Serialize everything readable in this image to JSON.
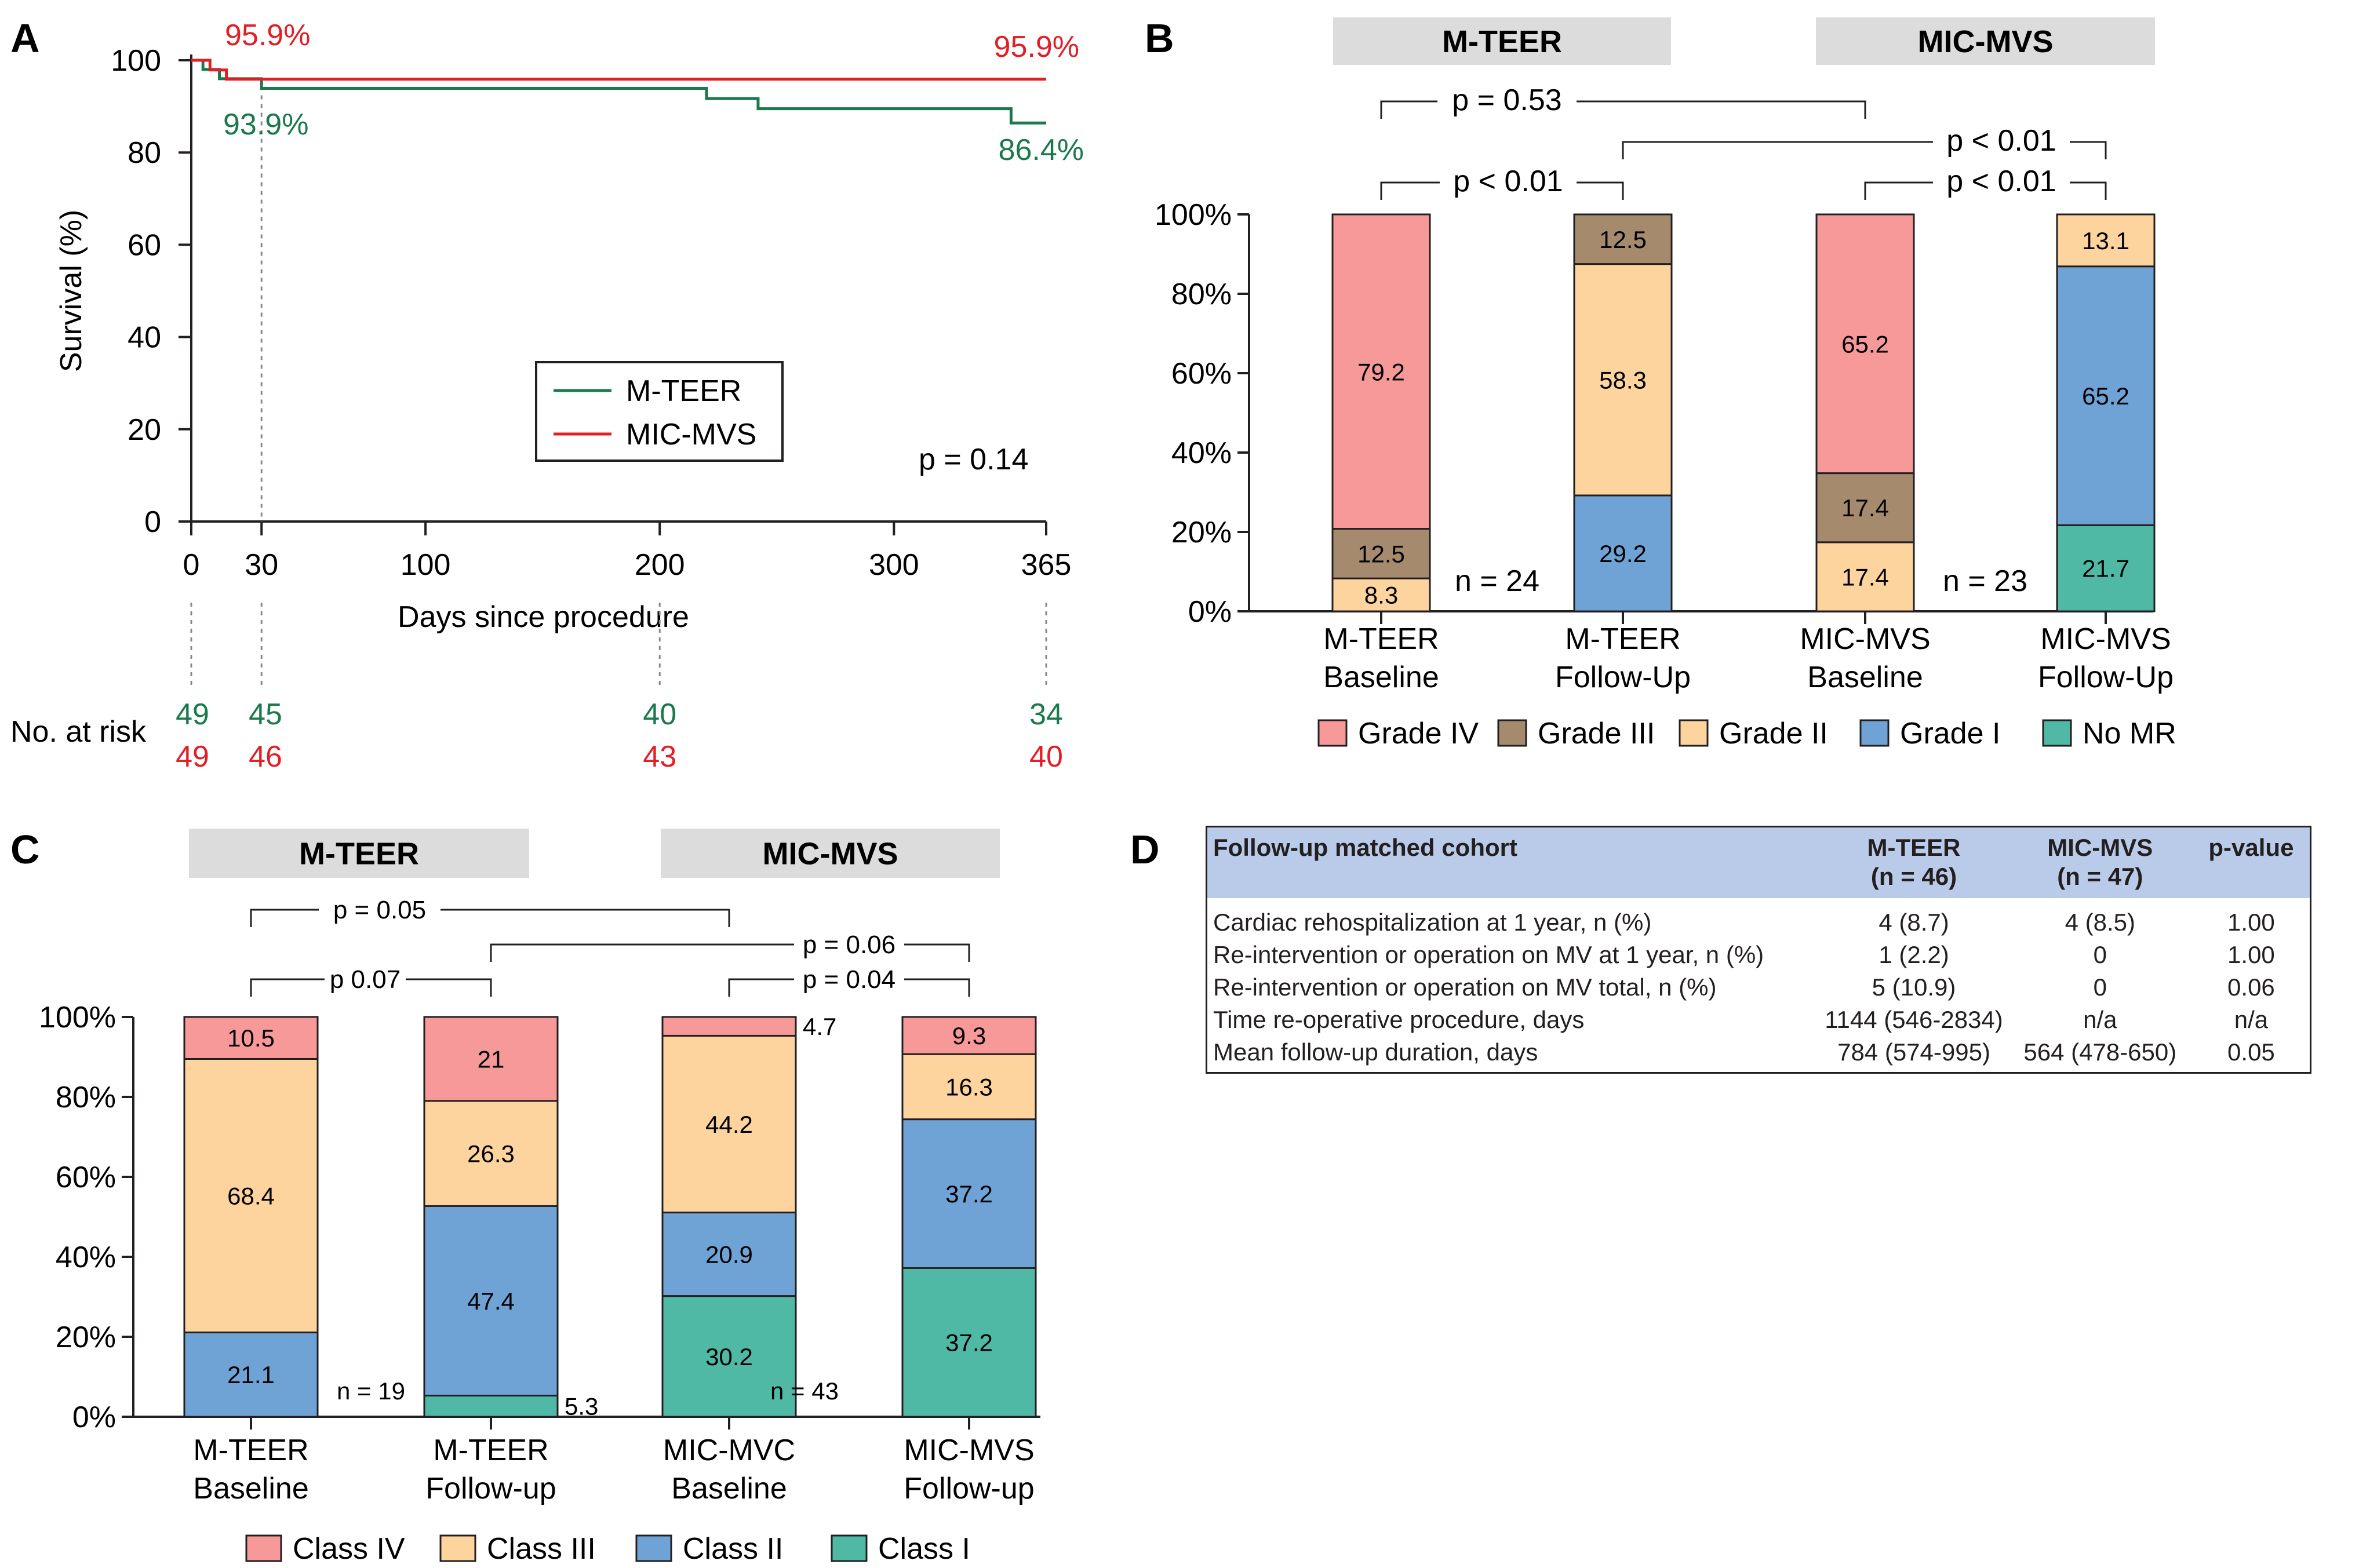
{
  "colors": {
    "mteer": "#1a7a4c",
    "micmvs": "#e31e24",
    "grade_iv": "#f79999",
    "grade_iii": "#a68a6e",
    "grade_ii": "#fdd49e",
    "grade_i": "#6fa3d6",
    "no_mr": "#4fb9a5",
    "header_box": "#dcdcdc",
    "table_header": "#b9cbe8",
    "axis": "#231f20",
    "guide": "#888888"
  },
  "chart_data": [
    {
      "panel": "A",
      "type": "line",
      "title": "",
      "xlabel": "Days since procedure",
      "ylabel": "Survival (%)",
      "xlim": [
        0,
        365
      ],
      "ylim": [
        0,
        100
      ],
      "xticks": [
        "0",
        "30",
        "100",
        "200",
        "300",
        "365"
      ],
      "yticks": [
        "0",
        "20",
        "40",
        "60",
        "80",
        "100"
      ],
      "legend": [
        "M-TEER",
        "MIC-MVS"
      ],
      "pvalue": "p = 0.14",
      "series": [
        {
          "name": "M-TEER",
          "points": [
            [
              0,
              100
            ],
            [
              5,
              100
            ],
            [
              5,
              98
            ],
            [
              12,
              98
            ],
            [
              12,
              96
            ],
            [
              30,
              96
            ],
            [
              30,
              93.9
            ],
            [
              220,
              93.9
            ],
            [
              220,
              91.7
            ],
            [
              242,
              91.7
            ],
            [
              242,
              89.5
            ],
            [
              350,
              89.5
            ],
            [
              350,
              86.4
            ],
            [
              365,
              86.4
            ]
          ]
        },
        {
          "name": "MIC-MVS",
          "points": [
            [
              0,
              100
            ],
            [
              8,
              100
            ],
            [
              8,
              97.9
            ],
            [
              15,
              97.9
            ],
            [
              15,
              95.9
            ],
            [
              365,
              95.9
            ]
          ]
        }
      ],
      "annotations": {
        "mic_mvs_30d": "95.9%",
        "mic_mvs_365d": "95.9%",
        "m_teer_30d": "93.9%",
        "m_teer_365d": "86.4%"
      },
      "risk_table": {
        "label": "No. at risk",
        "days": [
          0,
          30,
          200,
          365
        ],
        "m_teer": [
          "49",
          "45",
          "40",
          "34"
        ],
        "mic_mvs": [
          "49",
          "46",
          "43",
          "40"
        ]
      }
    },
    {
      "panel": "B",
      "type": "bar",
      "stacked": true,
      "ylim": [
        0,
        100
      ],
      "yticks": [
        "0%",
        "20%",
        "40%",
        "60%",
        "80%",
        "100%"
      ],
      "groups": [
        "M-TEER",
        "MIC-MVS"
      ],
      "categories": [
        "M-TEER\nBaseline",
        "M-TEER\nFollow-Up",
        "MIC-MVS\nBaseline",
        "MIC-MVS\nFollow-Up"
      ],
      "series": [
        {
          "name": "No MR",
          "values": [
            0,
            0,
            0,
            21.7
          ]
        },
        {
          "name": "Grade I",
          "values": [
            0,
            29.2,
            0,
            65.2
          ]
        },
        {
          "name": "Grade II",
          "values": [
            8.3,
            58.3,
            17.4,
            13.1
          ]
        },
        {
          "name": "Grade III",
          "values": [
            12.5,
            12.5,
            17.4,
            0
          ]
        },
        {
          "name": "Grade IV",
          "values": [
            79.2,
            0,
            65.2,
            0
          ]
        }
      ],
      "n_labels": [
        "n = 24",
        "n = 23"
      ],
      "legend": [
        "Grade IV",
        "Grade III",
        "Grade II",
        "Grade I",
        "No MR"
      ],
      "pvalues": [
        {
          "from": 0,
          "to": 2,
          "label": "p = 0.53"
        },
        {
          "from": 1,
          "to": 3,
          "label": "p < 0.01"
        },
        {
          "from": 0,
          "to": 1,
          "label": "p < 0.01"
        },
        {
          "from": 2,
          "to": 3,
          "label": "p < 0.01"
        }
      ]
    },
    {
      "panel": "C",
      "type": "bar",
      "stacked": true,
      "ylim": [
        0,
        100
      ],
      "yticks": [
        "0%",
        "20%",
        "40%",
        "60%",
        "80%",
        "100%"
      ],
      "groups": [
        "M-TEER",
        "MIC-MVS"
      ],
      "categories": [
        "M-TEER\nBaseline",
        "M-TEER\nFollow-up",
        "MIC-MVC\nBaseline",
        "MIC-MVS\nFollow-up"
      ],
      "series": [
        {
          "name": "Class I",
          "values": [
            0,
            5.3,
            30.2,
            37.2
          ]
        },
        {
          "name": "Class II",
          "values": [
            21.1,
            47.4,
            20.9,
            37.2
          ]
        },
        {
          "name": "Class III",
          "values": [
            68.4,
            26.3,
            44.2,
            16.3
          ]
        },
        {
          "name": "Class IV",
          "values": [
            10.5,
            21,
            4.7,
            9.3
          ]
        }
      ],
      "n_labels": [
        "n = 19",
        "n = 43"
      ],
      "legend": [
        "Class IV",
        "Class III",
        "Class II",
        "Class I"
      ],
      "pvalues": [
        {
          "from": 0,
          "to": 2,
          "label": "p = 0.05"
        },
        {
          "from": 1,
          "to": 3,
          "label": "p = 0.06"
        },
        {
          "from": 0,
          "to": 1,
          "label": "p 0.07"
        },
        {
          "from": 2,
          "to": 3,
          "label": "p = 0.04"
        }
      ]
    },
    {
      "panel": "D",
      "type": "table",
      "columns": [
        "Follow-up matched cohort",
        "M-TEER\n(n = 46)",
        "MIC-MVS\n(n = 47)",
        "p-value"
      ],
      "rows": [
        [
          "Cardiac rehospitalization at 1 year, n (%)",
          "4 (8.7)",
          "4 (8.5)",
          "1.00"
        ],
        [
          "Re-intervention or operation on MV at 1 year, n (%)",
          "1 (2.2)",
          "0",
          "1.00"
        ],
        [
          "Re-intervention or operation on MV total, n (%)",
          "5 (10.9)",
          "0",
          "0.06"
        ],
        [
          "Time re-operative procedure, days",
          "1144 (546-2834)",
          "n/a",
          "n/a"
        ],
        [
          "Mean follow-up duration, days",
          "784 (574-995)",
          "564 (478-650)",
          "0.05"
        ]
      ]
    }
  ],
  "panel_letters": {
    "a": "A",
    "b": "B",
    "c": "C",
    "d": "D"
  }
}
